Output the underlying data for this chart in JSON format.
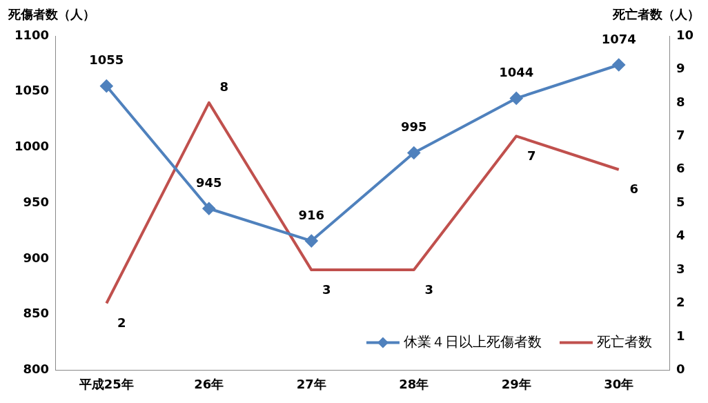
{
  "chart_data": {
    "type": "line",
    "ylabel": "死傷者数（人）",
    "y2label": "死亡者数（人）",
    "categories": [
      "平成25年",
      "26年",
      "27年",
      "28年",
      "29年",
      "30年"
    ],
    "series": [
      {
        "name": "休業４日以上死傷者数",
        "color": "#4f81bd",
        "values": [
          1055,
          945,
          916,
          995,
          1044,
          1074
        ],
        "marker": "diamond"
      },
      {
        "name": "死亡者数",
        "color": "#c0504d",
        "values": [
          2,
          8,
          3,
          3,
          7,
          6
        ],
        "axis": "y2",
        "marker": "none"
      }
    ],
    "ylim": [
      800,
      1100
    ],
    "yticks": [
      800,
      850,
      900,
      950,
      1000,
      1050,
      1100
    ],
    "y2lim": [
      0,
      10
    ],
    "y2ticks": [
      0,
      1,
      2,
      3,
      4,
      5,
      6,
      7,
      8,
      9,
      10
    ],
    "data_labels": true,
    "legend": "bottom right",
    "grid": false
  }
}
